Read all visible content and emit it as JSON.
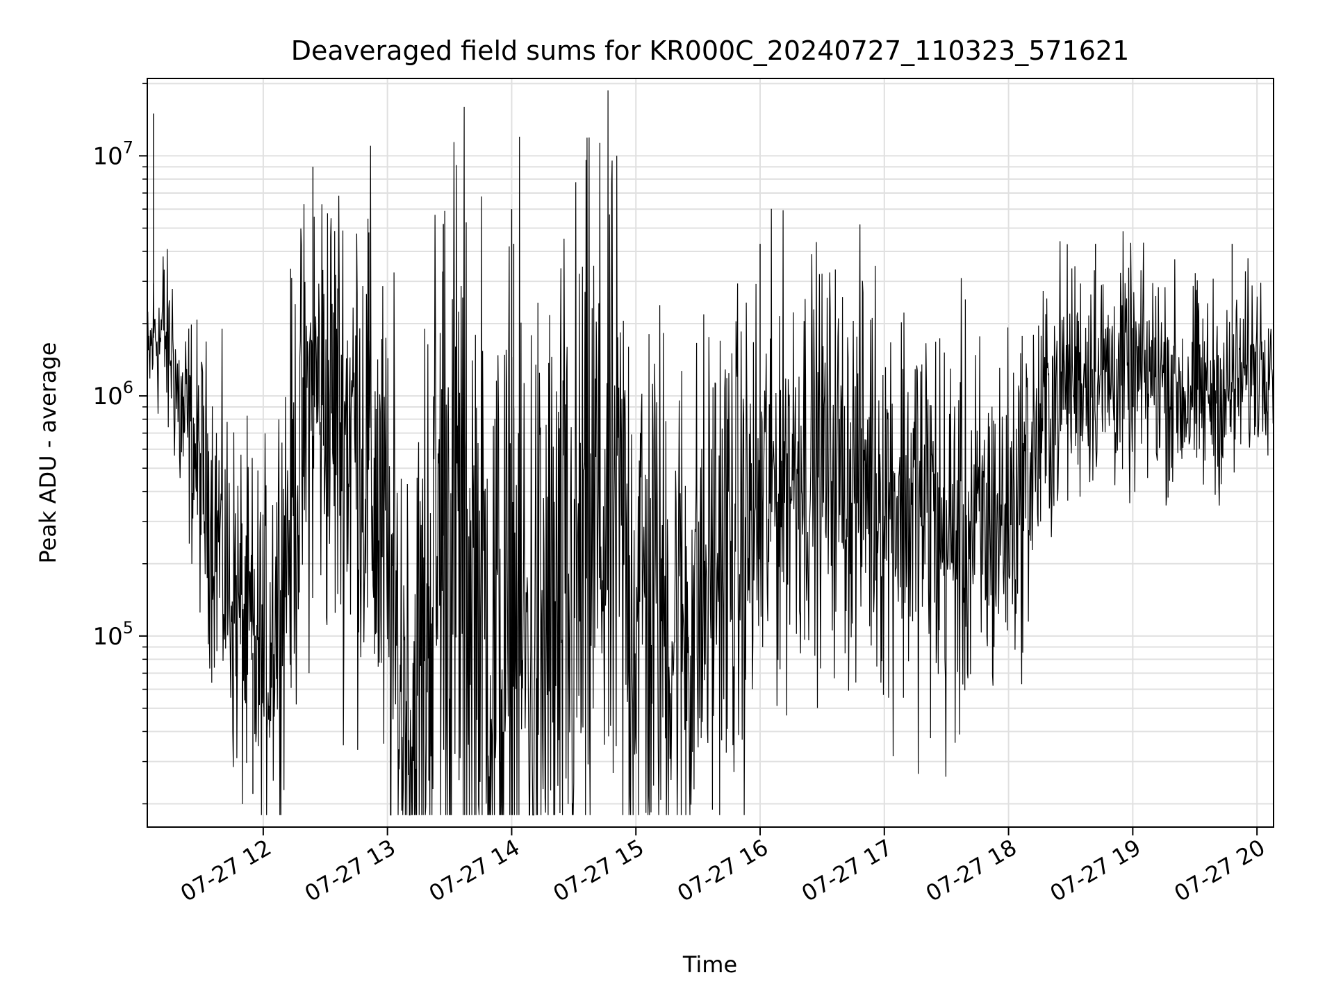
{
  "chart_data": {
    "type": "line",
    "title": "Deaveraged field sums for KR000C_20240727_110323_571621",
    "xlabel": "Time",
    "ylabel": "Peak ADU - average",
    "x_ticks": [
      "07-27 12",
      "07-27 13",
      "07-27 14",
      "07-27 15",
      "07-27 16",
      "07-27 17",
      "07-27 18",
      "07-27 19",
      "07-27 20"
    ],
    "y_ticks": [
      {
        "base": "10",
        "exp": "5",
        "value": 100000
      },
      {
        "base": "10",
        "exp": "6",
        "value": 1000000
      },
      {
        "base": "10",
        "exp": "7",
        "value": 10000000
      }
    ],
    "y_scale": "log",
    "ylim": [
      16000,
      21000000
    ],
    "xlim": [
      "2024-07-27 11:04",
      "2024-07-27 20:08"
    ],
    "grid": true,
    "line_color": "#000000",
    "series": [
      {
        "points": [
          [
            "2024-07-27 11:04",
            1200000
          ],
          [
            "2024-07-27 11:06",
            1600000
          ],
          [
            "2024-07-27 11:08",
            1900000
          ],
          [
            "2024-07-27 11:10",
            1700000
          ],
          [
            "2024-07-27 11:12",
            2000000
          ],
          [
            "2024-07-27 11:14",
            1400000
          ],
          [
            "2024-07-27 11:16",
            1700000
          ],
          [
            "2024-07-27 11:18",
            1100000
          ],
          [
            "2024-07-27 11:20",
            800000
          ],
          [
            "2024-07-27 11:25",
            700000
          ],
          [
            "2024-07-27 11:30",
            450000
          ],
          [
            "2024-07-27 11:35",
            350000
          ],
          [
            "2024-07-27 11:40",
            220000
          ],
          [
            "2024-07-27 11:45",
            150000
          ],
          [
            "2024-07-27 11:50",
            110000
          ],
          [
            "2024-07-27 11:55",
            85000
          ],
          [
            "2024-07-27 12:00",
            75000
          ],
          [
            "2024-07-27 12:05",
            130000
          ],
          [
            "2024-07-27 12:10",
            220000
          ],
          [
            "2024-07-27 12:15",
            400000
          ],
          [
            "2024-07-27 12:20",
            700000
          ],
          [
            "2024-07-27 12:25",
            1100000
          ],
          [
            "2024-07-27 12:30",
            950000
          ],
          [
            "2024-07-27 12:35",
            850000
          ],
          [
            "2024-07-27 12:40",
            800000
          ],
          [
            "2024-07-27 12:45",
            750000
          ],
          [
            "2024-07-27 12:50",
            600000
          ],
          [
            "2024-07-27 12:55",
            350000
          ],
          [
            "2024-07-27 13:00",
            160000
          ],
          [
            "2024-07-27 13:05",
            70000
          ],
          [
            "2024-07-27 13:10",
            45000
          ],
          [
            "2024-07-27 13:15",
            40000
          ],
          [
            "2024-07-27 13:20",
            160000
          ],
          [
            "2024-07-27 13:25",
            250000
          ],
          [
            "2024-07-27 13:30",
            280000
          ],
          [
            "2024-07-27 13:35",
            240000
          ],
          [
            "2024-07-27 13:40",
            170000
          ],
          [
            "2024-07-27 13:45",
            110000
          ],
          [
            "2024-07-27 13:50",
            75000
          ],
          [
            "2024-07-27 13:55",
            60000
          ],
          [
            "2024-07-27 14:00",
            90000
          ],
          [
            "2024-07-27 14:05",
            90000
          ],
          [
            "2024-07-27 14:10",
            75000
          ],
          [
            "2024-07-27 14:15",
            80000
          ],
          [
            "2024-07-27 14:20",
            90000
          ],
          [
            "2024-07-27 14:25",
            100000
          ],
          [
            "2024-07-27 14:30",
            140000
          ],
          [
            "2024-07-27 14:35",
            200000
          ],
          [
            "2024-07-27 14:40",
            280000
          ],
          [
            "2024-07-27 14:45",
            300000
          ],
          [
            "2024-07-27 14:50",
            280000
          ],
          [
            "2024-07-27 14:55",
            200000
          ],
          [
            "2024-07-27 15:00",
            150000
          ],
          [
            "2024-07-27 15:05",
            140000
          ],
          [
            "2024-07-27 15:10",
            130000
          ],
          [
            "2024-07-27 15:15",
            120000
          ],
          [
            "2024-07-27 15:20",
            110000
          ],
          [
            "2024-07-27 15:25",
            110000
          ],
          [
            "2024-07-27 15:30",
            130000
          ],
          [
            "2024-07-27 15:35",
            170000
          ],
          [
            "2024-07-27 15:40",
            220000
          ],
          [
            "2024-07-27 15:45",
            240000
          ],
          [
            "2024-07-27 15:50",
            230000
          ],
          [
            "2024-07-27 15:55",
            280000
          ],
          [
            "2024-07-27 16:00",
            320000
          ],
          [
            "2024-07-27 16:05",
            400000
          ],
          [
            "2024-07-27 16:10",
            480000
          ],
          [
            "2024-07-27 16:15",
            520000
          ],
          [
            "2024-07-27 16:20",
            560000
          ],
          [
            "2024-07-27 16:25",
            560000
          ],
          [
            "2024-07-27 16:30",
            530000
          ],
          [
            "2024-07-27 16:35",
            540000
          ],
          [
            "2024-07-27 16:40",
            480000
          ],
          [
            "2024-07-27 16:45",
            450000
          ],
          [
            "2024-07-27 16:50",
            500000
          ],
          [
            "2024-07-27 16:55",
            480000
          ],
          [
            "2024-07-27 17:00",
            400000
          ],
          [
            "2024-07-27 17:05",
            380000
          ],
          [
            "2024-07-27 17:10",
            390000
          ],
          [
            "2024-07-27 17:15",
            340000
          ],
          [
            "2024-07-27 17:20",
            350000
          ],
          [
            "2024-07-27 17:25",
            300000
          ],
          [
            "2024-07-27 17:30",
            230000
          ],
          [
            "2024-07-27 17:35",
            260000
          ],
          [
            "2024-07-27 17:40",
            280000
          ],
          [
            "2024-07-27 17:45",
            250000
          ],
          [
            "2024-07-27 17:50",
            280000
          ],
          [
            "2024-07-27 17:55",
            300000
          ],
          [
            "2024-07-27 18:00",
            330000
          ],
          [
            "2024-07-27 18:05",
            400000
          ],
          [
            "2024-07-27 18:10",
            500000
          ],
          [
            "2024-07-27 18:15",
            700000
          ],
          [
            "2024-07-27 18:20",
            900000
          ],
          [
            "2024-07-27 18:25",
            1100000
          ],
          [
            "2024-07-27 18:30",
            1200000
          ],
          [
            "2024-07-27 18:35",
            1250000
          ],
          [
            "2024-07-27 18:40",
            1300000
          ],
          [
            "2024-07-27 18:45",
            1200000
          ],
          [
            "2024-07-27 18:50",
            1250000
          ],
          [
            "2024-07-27 18:55",
            1300000
          ],
          [
            "2024-07-27 19:00",
            1150000
          ],
          [
            "2024-07-27 19:05",
            1200000
          ],
          [
            "2024-07-27 19:10",
            1250000
          ],
          [
            "2024-07-27 19:15",
            1200000
          ],
          [
            "2024-07-27 19:20",
            1100000
          ],
          [
            "2024-07-27 19:25",
            1000000
          ],
          [
            "2024-07-27 19:30",
            1050000
          ],
          [
            "2024-07-27 19:35",
            1000000
          ],
          [
            "2024-07-27 19:40",
            1100000
          ],
          [
            "2024-07-27 19:45",
            950000
          ],
          [
            "2024-07-27 19:50",
            1100000
          ],
          [
            "2024-07-27 19:55",
            1300000
          ],
          [
            "2024-07-27 20:00",
            1400000
          ],
          [
            "2024-07-27 20:05",
            1550000
          ],
          [
            "2024-07-27 20:08",
            1600000
          ]
        ],
        "noise_amplitude_decades": [
          [
            "2024-07-27 11:04",
            0.15
          ],
          [
            "2024-07-27 11:25",
            0.25
          ],
          [
            "2024-07-27 11:40",
            0.35
          ],
          [
            "2024-07-27 12:15",
            0.45
          ],
          [
            "2024-07-27 13:00",
            0.6
          ],
          [
            "2024-07-27 13:30",
            0.85
          ],
          [
            "2024-07-27 14:30",
            0.8
          ],
          [
            "2024-07-27 15:30",
            0.55
          ],
          [
            "2024-07-27 16:30",
            0.4
          ],
          [
            "2024-07-27 17:30",
            0.45
          ],
          [
            "2024-07-27 18:30",
            0.25
          ],
          [
            "2024-07-27 19:30",
            0.22
          ],
          [
            "2024-07-27 20:08",
            0.18
          ]
        ],
        "spikes": [
          [
            "2024-07-27 11:07",
            15000000
          ],
          [
            "2024-07-27 12:24",
            9000000
          ],
          [
            "2024-07-27 12:51",
            4800000
          ],
          [
            "2024-07-27 13:27",
            5200000
          ],
          [
            "2024-07-27 14:00",
            6000000
          ],
          [
            "2024-07-27 14:01",
            4300000
          ],
          [
            "2024-07-27 16:00",
            4300000
          ],
          [
            "2024-07-27 18:42",
            4300000
          ],
          [
            "2024-07-27 19:48",
            4300000
          ],
          [
            "2024-07-27 12:36",
            2800000
          ],
          [
            "2024-07-27 11:55",
            22000
          ],
          [
            "2024-07-27 13:20",
            25000
          ],
          [
            "2024-07-27 13:55",
            24000
          ]
        ]
      }
    ]
  }
}
